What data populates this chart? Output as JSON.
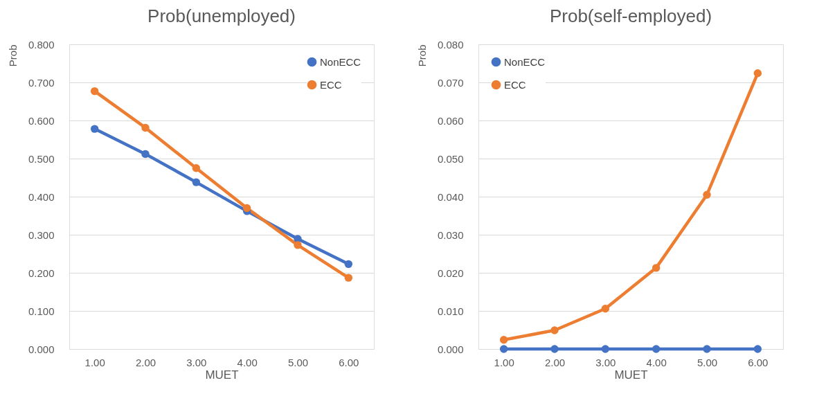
{
  "chart_data": [
    {
      "type": "line",
      "title": "Prob(unemployed)",
      "xlabel": "MUET",
      "ylabel": "Prob",
      "categories": [
        "1.00",
        "2.00",
        "3.00",
        "4.00",
        "5.00",
        "6.00"
      ],
      "series": [
        {
          "name": "NonECC",
          "color": "#4472c4",
          "values": [
            0.578,
            0.512,
            0.438,
            0.362,
            0.289,
            0.223
          ]
        },
        {
          "name": "ECC",
          "color": "#ed7d31",
          "values": [
            0.677,
            0.581,
            0.475,
            0.37,
            0.273,
            0.187
          ]
        }
      ],
      "ylim": [
        0,
        0.8
      ],
      "yticks": [
        {
          "value": 0,
          "label": "0.000"
        },
        {
          "value": 0.1,
          "label": "0.100"
        },
        {
          "value": 0.2,
          "label": "0.200"
        },
        {
          "value": 0.3,
          "label": "0.300"
        },
        {
          "value": 0.4,
          "label": "0.400"
        },
        {
          "value": 0.5,
          "label": "0.500"
        },
        {
          "value": 0.6,
          "label": "0.600"
        },
        {
          "value": 0.7,
          "label": "0.700"
        },
        {
          "value": 0.8,
          "label": "0.800"
        }
      ],
      "grid": "y",
      "legend": "top right",
      "marker": "circle",
      "line_style": "solid"
    },
    {
      "type": "line",
      "title": "Prob(self-employed)",
      "xlabel": "MUET",
      "ylabel": "Prob",
      "categories": [
        "1.00",
        "2.00",
        "3.00",
        "4.00",
        "5.00",
        "6.00"
      ],
      "series": [
        {
          "name": "NonECC",
          "color": "#4472c4",
          "values": [
            0,
            0,
            0,
            0,
            0,
            0
          ]
        },
        {
          "name": "ECC",
          "color": "#ed7d31",
          "values": [
            0.0024,
            0.0049,
            0.0106,
            0.0213,
            0.0405,
            0.0724
          ]
        }
      ],
      "ylim": [
        0,
        0.08
      ],
      "yticks": [
        {
          "value": 0,
          "label": "0.000"
        },
        {
          "value": 0.01,
          "label": "0.010"
        },
        {
          "value": 0.02,
          "label": "0.020"
        },
        {
          "value": 0.03,
          "label": "0.030"
        },
        {
          "value": 0.04,
          "label": "0.040"
        },
        {
          "value": 0.05,
          "label": "0.050"
        },
        {
          "value": 0.06,
          "label": "0.060"
        },
        {
          "value": 0.07,
          "label": "0.070"
        },
        {
          "value": 0.08,
          "label": "0.080"
        }
      ],
      "grid": "y",
      "legend": "top left",
      "marker": "circle",
      "line_style": "solid"
    }
  ]
}
